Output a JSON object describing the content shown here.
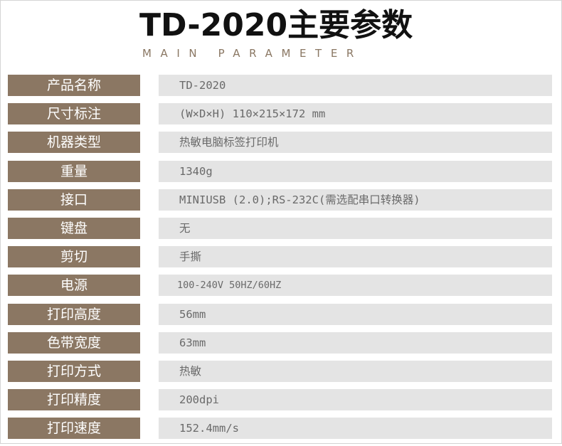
{
  "header": {
    "title": "TD-2020主要参数",
    "subtitle": "MAIN PARAMETER"
  },
  "rows": [
    {
      "label": "产品名称",
      "value": "TD-2020"
    },
    {
      "label": "尺寸标注",
      "value": "(W×D×H) 110×215×172 mm"
    },
    {
      "label": "机器类型",
      "value": "热敏电脑标签打印机"
    },
    {
      "label": "重量",
      "value": "1340g"
    },
    {
      "label": "接口",
      "value": "MINIUSB (2.0);RS-232C(需选配串口转换器)"
    },
    {
      "label": "键盘",
      "value": "无"
    },
    {
      "label": "剪切",
      "value": "手撕"
    },
    {
      "label": "电源",
      "value": "100-240V 50HZ/60HZ"
    },
    {
      "label": "打印高度",
      "value": "56mm"
    },
    {
      "label": "色带宽度",
      "value": "63mm"
    },
    {
      "label": "打印方式",
      "value": "热敏"
    },
    {
      "label": "打印精度",
      "value": "200dpi"
    },
    {
      "label": "打印速度",
      "value": "152.4mm/s"
    }
  ]
}
